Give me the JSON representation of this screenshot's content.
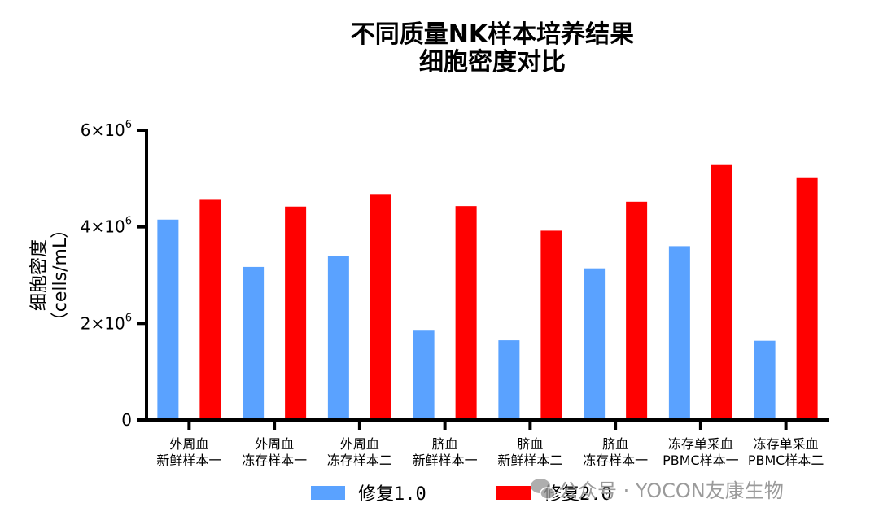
{
  "chart_data": {
    "type": "bar",
    "title": [
      "不同质量NK样本培养结果",
      "细胞密度对比"
    ],
    "ylabel": [
      "细胞密度",
      "（cells/mL）"
    ],
    "xlabel": "",
    "ylim": [
      0,
      6000000
    ],
    "yticks": [
      {
        "value": 0,
        "base": "0",
        "exp": ""
      },
      {
        "value": 2000000,
        "base": "2×10",
        "exp": "6"
      },
      {
        "value": 4000000,
        "base": "4×10",
        "exp": "6"
      },
      {
        "value": 6000000,
        "base": "6×10",
        "exp": "6"
      }
    ],
    "categories": [
      [
        "外周血",
        "新鲜样本一"
      ],
      [
        "外周血",
        "冻存样本一"
      ],
      [
        "外周血",
        "冻存样本二"
      ],
      [
        "脐血",
        "新鲜样本一"
      ],
      [
        "脐血",
        "新鲜样本二"
      ],
      [
        "脐血",
        "冻存样本一"
      ],
      [
        "冻存单采血",
        "PBMC样本一"
      ],
      [
        "冻存单采血",
        "PBMC样本二"
      ]
    ],
    "series": [
      {
        "name": "修复1.0",
        "color": "#5aa2ff",
        "values": [
          4150000,
          3170000,
          3400000,
          1850000,
          1650000,
          3140000,
          3600000,
          1640000
        ]
      },
      {
        "name": "修复2.0",
        "color": "#ff0000",
        "values": [
          4560000,
          4420000,
          4680000,
          4430000,
          3920000,
          4520000,
          5280000,
          5010000
        ]
      }
    ],
    "grid": false,
    "legend_position": "bottom"
  },
  "watermark": {
    "text": "公众号 · YOCON友康生物",
    "icon": "wechat-icon",
    "color": "#9a9a9a"
  }
}
